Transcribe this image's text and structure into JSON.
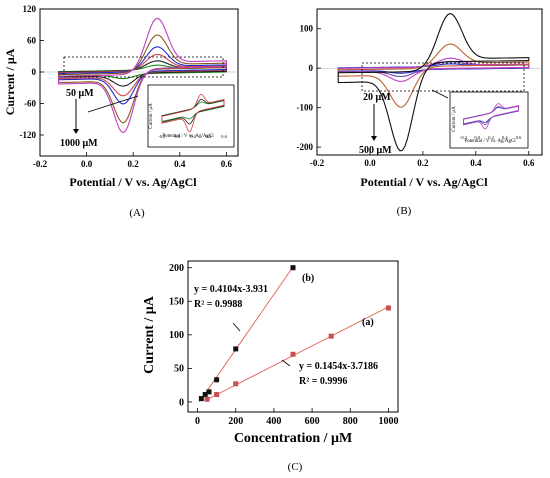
{
  "chart_data": [
    {
      "panel": "(A)",
      "type": "line",
      "xlabel": "Potential / V vs. Ag/AgCl",
      "ylabel": "Current / μA",
      "xlim": [
        -0.2,
        0.65
      ],
      "ylim": [
        -160,
        120
      ],
      "xticks": [
        -0.2,
        0.0,
        0.2,
        0.4,
        0.6
      ],
      "yticks": [
        120,
        60,
        0,
        -60,
        -120
      ],
      "annotations": [
        "50 μM",
        "1000 μM"
      ],
      "series": [
        {
          "color": "#1a8a1a",
          "ox_peak": [
            0.3,
            8
          ],
          "red_peak": [
            0.16,
            -8
          ]
        },
        {
          "color": "#222222",
          "ox_peak": [
            0.3,
            16
          ],
          "red_peak": [
            0.16,
            -22
          ]
        },
        {
          "color": "#d04545",
          "ox_peak": [
            0.3,
            28
          ],
          "red_peak": [
            0.16,
            -40
          ]
        },
        {
          "color": "#2030d0",
          "ox_peak": [
            0.3,
            42
          ],
          "red_peak": [
            0.16,
            -55
          ]
        },
        {
          "color": "#8a5a20",
          "ox_peak": [
            0.3,
            64
          ],
          "red_peak": [
            0.16,
            -90
          ]
        },
        {
          "color": "#c040c0",
          "ox_peak": [
            0.3,
            95
          ],
          "red_peak": [
            0.16,
            -108
          ]
        }
      ],
      "inset": {
        "xlabel": "Potential / V vs. Ag/AgCl",
        "ylabel": "Current / μA",
        "xticks": [
          -0.2,
          0.0,
          0.2,
          0.4,
          0.6
        ]
      }
    },
    {
      "panel": "(B)",
      "type": "line",
      "xlabel": "Potential / V vs. Ag/AgCl",
      "xlim": [
        -0.2,
        0.65
      ],
      "ylim": [
        -220,
        150
      ],
      "xticks": [
        -0.2,
        0.0,
        0.2,
        0.4,
        0.6
      ],
      "yticks": [
        100,
        0,
        -100,
        -200
      ],
      "annotations": [
        "20 μM",
        "500 μM"
      ],
      "series": [
        {
          "color": "#2030d0",
          "ox_peak": [
            0.3,
            6
          ],
          "red_peak": [
            0.12,
            -8
          ]
        },
        {
          "color": "#6a4ab0",
          "ox_peak": [
            0.3,
            12
          ],
          "red_peak": [
            0.12,
            -16
          ]
        },
        {
          "color": "#c040c0",
          "ox_peak": [
            0.3,
            20
          ],
          "red_peak": [
            0.12,
            -28
          ]
        },
        {
          "color": "#c06030",
          "ox_peak": [
            0.3,
            55
          ],
          "red_peak": [
            0.12,
            -92
          ]
        },
        {
          "color": "#111111",
          "ox_peak": [
            0.3,
            130
          ],
          "red_peak": [
            0.12,
            -200
          ]
        }
      ],
      "inset": {
        "xlabel": "Potential / V vs. Ag/AgCl",
        "ylabel": "Current / μA",
        "xticks": [
          -0.2,
          0.0,
          0.2,
          0.4,
          0.6
        ]
      }
    },
    {
      "panel": "(C)",
      "type": "scatter",
      "xlabel": "Concentration / μM",
      "ylabel": "Current / μA",
      "xlim": [
        -50,
        1050
      ],
      "ylim": [
        -15,
        210
      ],
      "xticks": [
        0,
        200,
        400,
        600,
        800,
        1000
      ],
      "yticks": [
        0,
        50,
        100,
        150,
        200
      ],
      "series": [
        {
          "name": "(b)",
          "color": "#111111",
          "equation": "y = 0.4104x-3.931",
          "r2": "R² = 0.9988",
          "points": [
            [
              20,
              5
            ],
            [
              40,
              11
            ],
            [
              60,
              15
            ],
            [
              100,
              33
            ],
            [
              200,
              79
            ],
            [
              500,
              200
            ]
          ]
        },
        {
          "name": "(a)",
          "color": "#c85050",
          "equation": "y = 0.1454x-3.7186",
          "r2": "R² = 0.9996",
          "points": [
            [
              50,
              4
            ],
            [
              100,
              11
            ],
            [
              200,
              27
            ],
            [
              500,
              71
            ],
            [
              700,
              98
            ],
            [
              1000,
              140
            ]
          ]
        }
      ]
    }
  ]
}
